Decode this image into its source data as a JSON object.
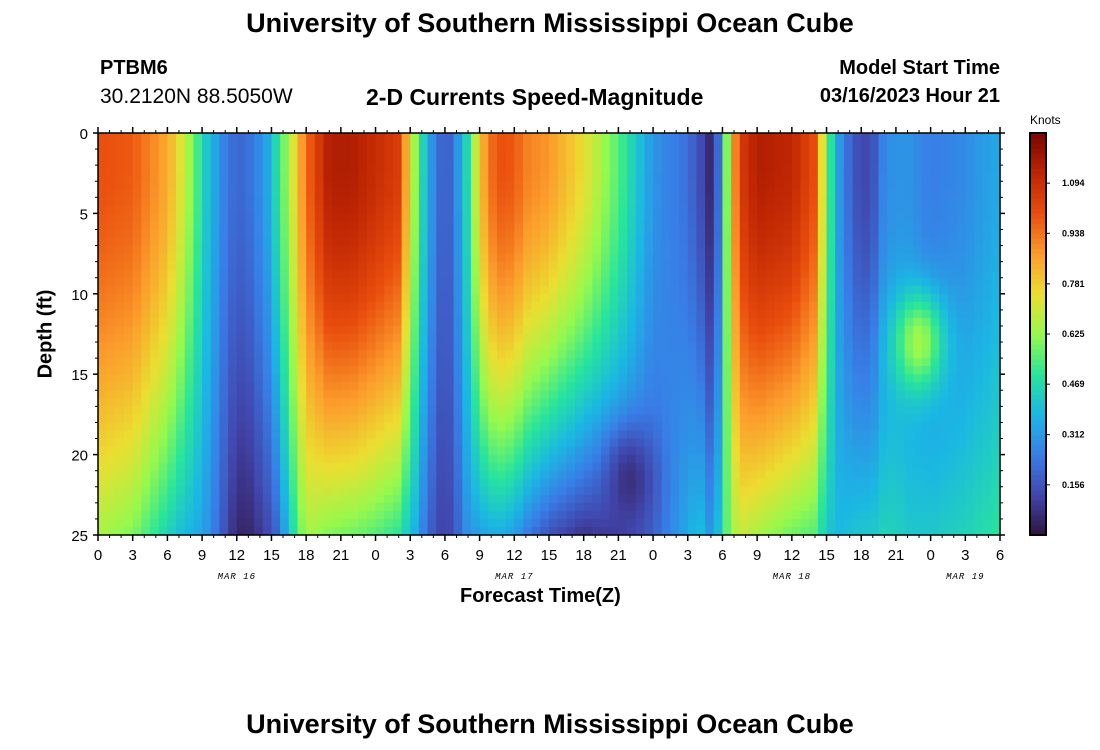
{
  "page": {
    "title": "University of Southern Mississippi Ocean Cube",
    "footer_title": "University of Southern Mississippi Ocean Cube",
    "station": "PTBM6",
    "coords": "30.2120N  88.5050W",
    "subtitle": "2-D Currents Speed-Magnitude",
    "model_start_label": "Model Start Time",
    "model_start_value": "03/16/2023 Hour 21"
  },
  "chart_data": {
    "type": "heatmap",
    "title": "2-D Currents Speed-Magnitude",
    "xlabel": "Forecast Time(Z)",
    "ylabel": "Depth (ft)",
    "colorbar_title": "Knots",
    "colorbar_ticks": [
      "0.156",
      "0.312",
      "0.469",
      "0.625",
      "0.781",
      "0.938",
      "1.094"
    ],
    "colorbar_values": [
      0.156,
      0.312,
      0.469,
      0.625,
      0.781,
      0.938,
      1.094
    ],
    "colorbar_range": [
      0,
      1.25
    ],
    "x_range_hours": [
      0,
      78
    ],
    "y_range_ft": [
      0,
      25
    ],
    "y_ticks": [
      "0",
      "5",
      "10",
      "15",
      "20",
      "25"
    ],
    "y_tick_values": [
      0,
      5,
      10,
      15,
      20,
      25
    ],
    "x_tick_labels": [
      "0",
      "3",
      "6",
      "9",
      "12",
      "15",
      "18",
      "21",
      "0",
      "3",
      "6",
      "9",
      "12",
      "15",
      "18",
      "21",
      "0",
      "3",
      "6",
      "9",
      "12",
      "15",
      "18",
      "21",
      "0",
      "3",
      "6"
    ],
    "date_labels": [
      {
        "label": "MAR 16",
        "hour": 12
      },
      {
        "label": "MAR 17",
        "hour": 36
      },
      {
        "label": "MAR 18",
        "hour": 60
      },
      {
        "label": "MAR 19",
        "hour": 75
      }
    ],
    "speed_profile": {
      "hours": [
        0,
        3,
        6,
        7,
        8.5,
        9.5,
        11,
        12,
        13,
        14.5,
        15.5,
        17,
        18,
        20,
        22,
        24,
        26,
        27.5,
        28.5,
        30,
        31,
        32,
        33,
        34,
        35,
        36,
        37,
        39,
        42,
        45,
        48,
        51,
        52,
        53,
        54,
        54.5,
        55.5,
        57,
        60,
        62,
        63,
        64,
        65,
        66,
        67,
        68,
        69,
        70,
        72,
        75,
        78
      ],
      "surface_knots": [
        1.0,
        0.98,
        0.85,
        0.75,
        0.55,
        0.4,
        0.25,
        0.2,
        0.22,
        0.32,
        0.48,
        0.75,
        0.95,
        1.15,
        1.15,
        1.1,
        1.05,
        0.6,
        0.35,
        0.15,
        0.28,
        0.48,
        0.8,
        0.95,
        1.0,
        0.98,
        0.92,
        0.88,
        0.75,
        0.55,
        0.3,
        0.22,
        0.15,
        0.05,
        0.3,
        0.7,
        1.05,
        1.15,
        1.12,
        1.0,
        0.6,
        0.32,
        0.2,
        0.12,
        0.15,
        0.28,
        0.3,
        0.3,
        0.25,
        0.28,
        0.35
      ],
      "bottom_knots": [
        0.65,
        0.6,
        0.45,
        0.4,
        0.35,
        0.3,
        0.15,
        0.05,
        0.05,
        0.12,
        0.2,
        0.5,
        0.65,
        0.6,
        0.58,
        0.55,
        0.5,
        0.35,
        0.2,
        0.1,
        0.18,
        0.3,
        0.32,
        0.35,
        0.35,
        0.32,
        0.25,
        0.15,
        0.08,
        0.12,
        0.2,
        0.35,
        0.4,
        0.3,
        0.45,
        0.6,
        0.7,
        0.65,
        0.58,
        0.55,
        0.42,
        0.38,
        0.4,
        0.42,
        0.42,
        0.45,
        0.45,
        0.42,
        0.42,
        0.45,
        0.5
      ]
    },
    "notable_features": [
      {
        "label": "mid-depth maximum",
        "hour": 71,
        "depth_ft": 13,
        "knots": 0.7
      },
      {
        "label": "deep minimum",
        "hour": 46,
        "depth_ft": 21.5,
        "knots": 0.05
      }
    ]
  }
}
